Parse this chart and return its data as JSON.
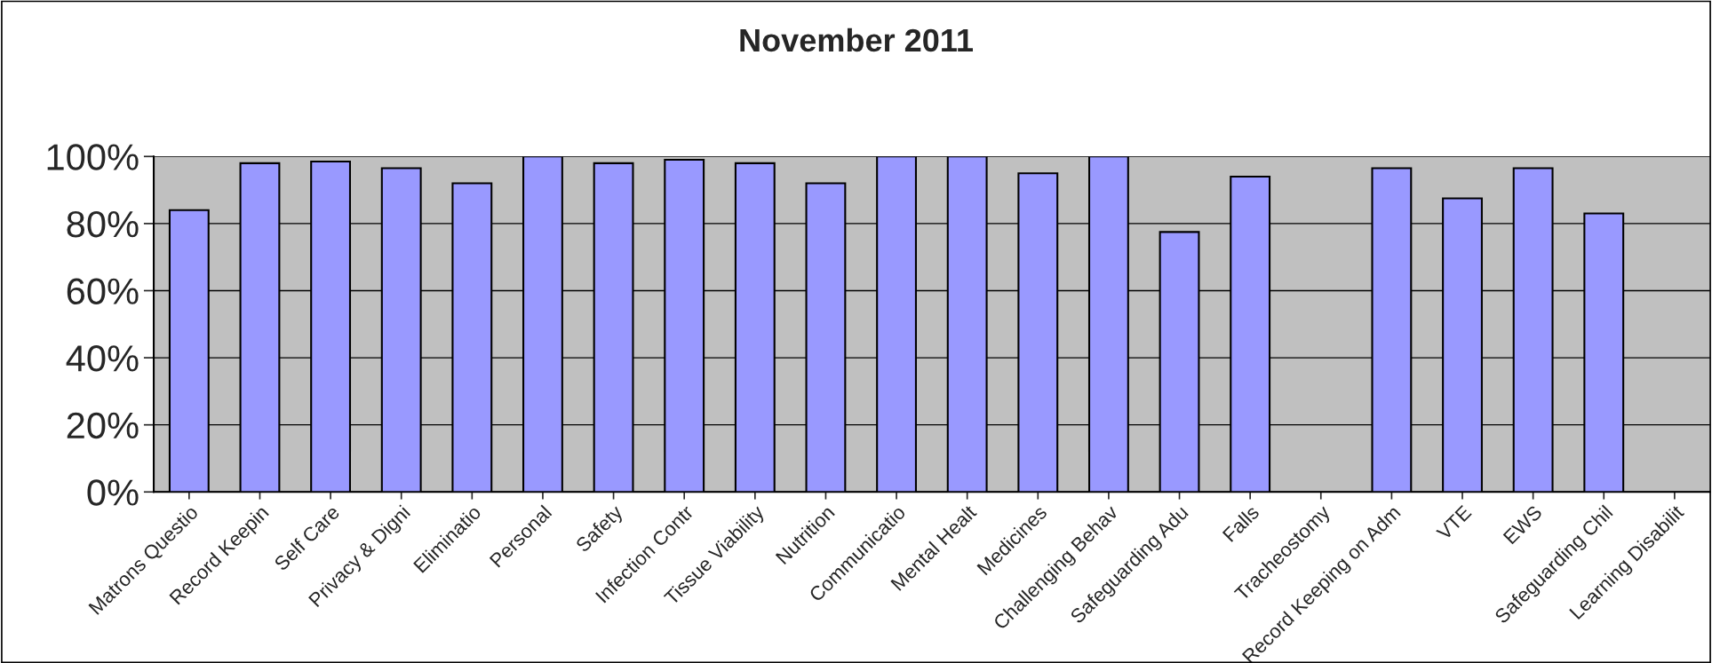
{
  "chart_data": {
    "type": "bar",
    "title": "November 2011",
    "categories": [
      "Matrons Questio",
      "Record Keepin",
      "Self Care",
      "Privacy & Digni",
      "Eliminatio",
      "Personal",
      "Safety",
      "Infection Contr",
      "Tissue Viability",
      "Nutrition",
      "Communicatio",
      "Mental Healt",
      "Medicines",
      "Challenging Behav",
      "Safeguarding Adu",
      "Falls",
      "Tracheostomy",
      "Record Keeping on Adm",
      "VTE",
      "EWS",
      "Safeguarding Chil",
      "Learning Disabilit"
    ],
    "values": [
      84,
      98,
      98.5,
      96.5,
      92,
      100,
      98,
      99,
      98,
      92,
      100,
      100,
      95,
      100,
      77.5,
      94,
      null,
      96.5,
      87.5,
      96.5,
      83,
      null
    ],
    "color": "#9999ff",
    "ylim": [
      0,
      100
    ],
    "yticks": [
      {
        "value": 0,
        "label": "0%"
      },
      {
        "value": 20,
        "label": "20%"
      },
      {
        "value": 40,
        "label": "40%"
      },
      {
        "value": 60,
        "label": "60%"
      },
      {
        "value": 80,
        "label": "80%"
      },
      {
        "value": 100,
        "label": "100%"
      }
    ],
    "grid": "y",
    "legend": false
  }
}
